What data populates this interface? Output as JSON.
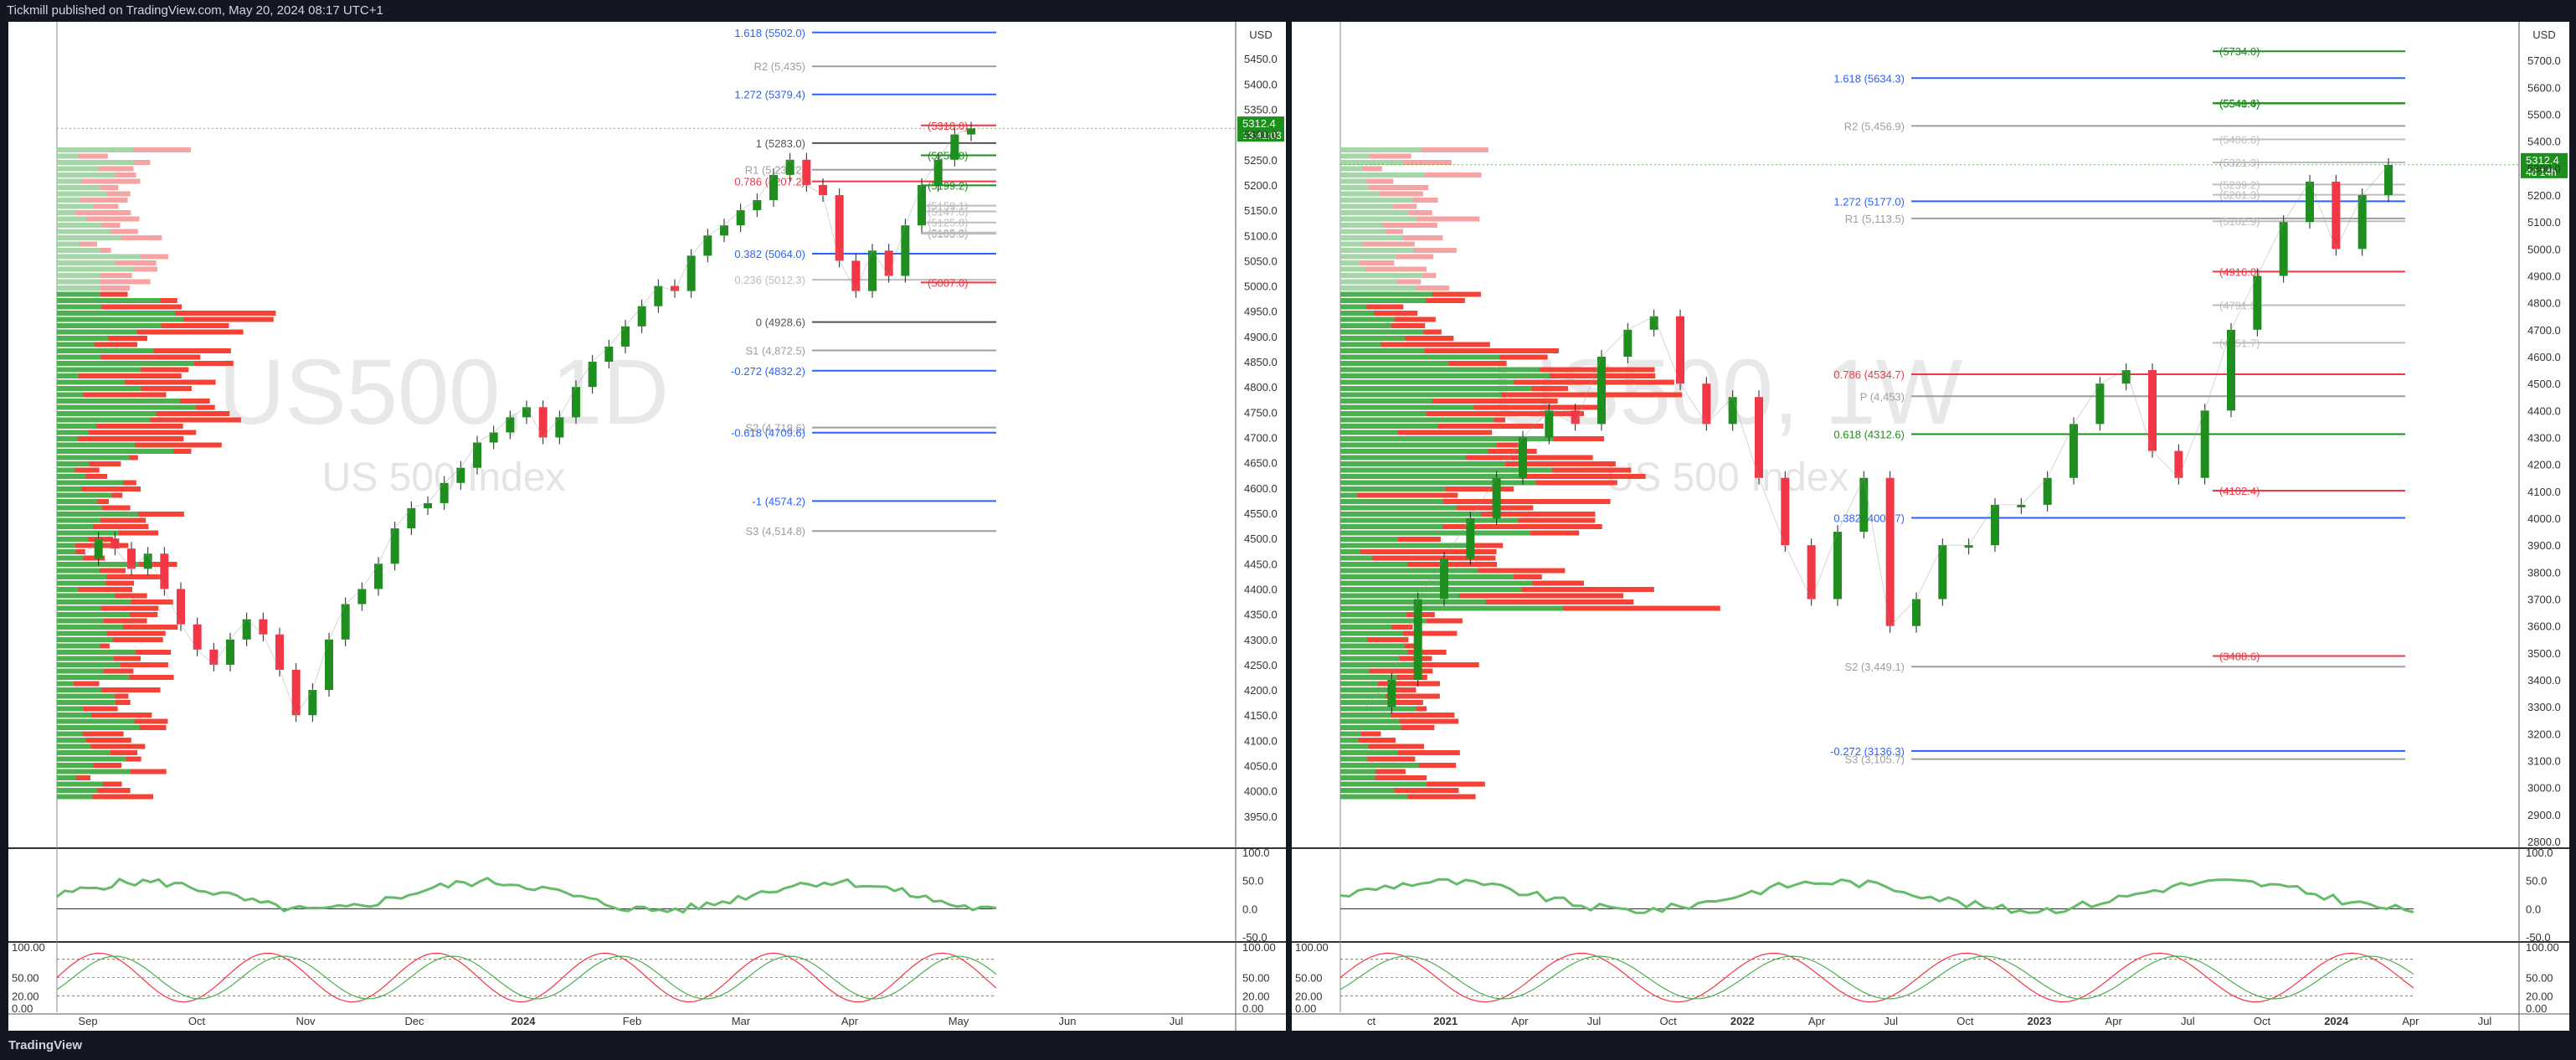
{
  "header": {
    "publish_line": "Tickmill published on TradingView.com, May 20, 2024 08:17 UTC+1"
  },
  "footer": {
    "brand": "TradingView"
  },
  "colors": {
    "up": "#1e8e1e",
    "down": "#f23645",
    "up_vol": "#4caf50",
    "down_vol": "#f44336",
    "fib_blue": "#2962ff",
    "pivot_grey": "#9e9e9e",
    "orange": "#ff9800",
    "magenta": "#e040fb"
  },
  "chart_data": [
    {
      "type": "line",
      "panel": "left",
      "symbol_watermark": "US500, 1D",
      "name_watermark": "US 500 Index",
      "currency": "USD",
      "last_price": "5312.4",
      "countdown": "13:41:03",
      "ylim": [
        3900,
        5500
      ],
      "y_ticks": [
        "5450.0",
        "5400.0",
        "5350.0",
        "5300.0",
        "5250.0",
        "5200.0",
        "5150.0",
        "5100.0",
        "5050.0",
        "5000.0",
        "4950.0",
        "4900.0",
        "4850.0",
        "4800.0",
        "4750.0",
        "4700.0",
        "4650.0",
        "4600.0",
        "4550.0",
        "4500.0",
        "4450.0",
        "4400.0",
        "4350.0",
        "4300.0",
        "4250.0",
        "4200.0",
        "4150.0",
        "4100.0",
        "4050.0",
        "4000.0",
        "3950.0"
      ],
      "x_ticks": [
        "Sep",
        "Oct",
        "Nov",
        "Dec",
        "2024",
        "Feb",
        "Mar",
        "Apr",
        "May",
        "Jun",
        "Jul"
      ],
      "x_tick_bold": [
        false,
        false,
        false,
        false,
        true,
        false,
        false,
        false,
        false,
        false,
        false
      ],
      "price_path": [
        [
          "Sep",
          4460
        ],
        [
          "Sep",
          4500
        ],
        [
          "Sep",
          4480
        ],
        [
          "Sep",
          4440
        ],
        [
          "Sep",
          4470
        ],
        [
          "Sep",
          4400
        ],
        [
          "Oct",
          4330
        ],
        [
          "Oct",
          4280
        ],
        [
          "Oct",
          4250
        ],
        [
          "Oct",
          4300
        ],
        [
          "Oct",
          4340
        ],
        [
          "Oct",
          4310
        ],
        [
          "Oct",
          4240
        ],
        [
          "Nov",
          4150
        ],
        [
          "Nov",
          4200
        ],
        [
          "Nov",
          4300
        ],
        [
          "Nov",
          4370
        ],
        [
          "Nov",
          4400
        ],
        [
          "Nov",
          4450
        ],
        [
          "Nov",
          4520
        ],
        [
          "Nov",
          4560
        ],
        [
          "Dec",
          4570
        ],
        [
          "Dec",
          4610
        ],
        [
          "Dec",
          4640
        ],
        [
          "Dec",
          4690
        ],
        [
          "Dec",
          4710
        ],
        [
          "Dec",
          4740
        ],
        [
          "Dec",
          4760
        ],
        [
          "2024",
          4700
        ],
        [
          "2024",
          4740
        ],
        [
          "2024",
          4800
        ],
        [
          "2024",
          4850
        ],
        [
          "2024",
          4880
        ],
        [
          "Feb",
          4920
        ],
        [
          "Feb",
          4960
        ],
        [
          "Feb",
          5000
        ],
        [
          "Feb",
          4990
        ],
        [
          "Feb",
          5060
        ],
        [
          "Mar",
          5100
        ],
        [
          "Mar",
          5120
        ],
        [
          "Mar",
          5150
        ],
        [
          "Mar",
          5170
        ],
        [
          "Mar",
          5220
        ],
        [
          "Apr",
          5250
        ],
        [
          "Apr",
          5200
        ],
        [
          "Apr",
          5180
        ],
        [
          "Apr",
          5050
        ],
        [
          "Apr",
          4990
        ],
        [
          "Apr",
          5070
        ],
        [
          "May",
          5020
        ],
        [
          "May",
          5120
        ],
        [
          "May",
          5200
        ],
        [
          "May",
          5250
        ],
        [
          "May",
          5300
        ],
        [
          "May",
          5312
        ]
      ],
      "levels": [
        {
          "label": "1.618 (5502.0)",
          "value": 5502.0,
          "color": "#2962ff"
        },
        {
          "label": "R2 (5,435)",
          "value": 5435,
          "color": "#9e9e9e"
        },
        {
          "label": "1.272 (5379.4)",
          "value": 5379.4,
          "color": "#2962ff"
        },
        {
          "label": "(5318.0)",
          "value": 5318.0,
          "color": "#f23645"
        },
        {
          "label": "1 (5283.0)",
          "value": 5283.0,
          "color": "#555555"
        },
        {
          "label": "(5258.8)",
          "value": 5258.8,
          "color": "#1e8e1e"
        },
        {
          "label": "R1 (5,230.2)",
          "value": 5230.2,
          "color": "#9e9e9e"
        },
        {
          "label": "0.786 (5207.2)",
          "value": 5207.2,
          "color": "#f23645"
        },
        {
          "label": "(5199.2)",
          "value": 5199.2,
          "color": "#1e8e1e"
        },
        {
          "label": "(5159.1)",
          "value": 5159.1,
          "color": "#bdbdbd"
        },
        {
          "label": "(5147.6)",
          "value": 5147.6,
          "color": "#bdbdbd"
        },
        {
          "label": "(5125.8)",
          "value": 5125.8,
          "color": "#bdbdbd"
        },
        {
          "label": "(5105.8)",
          "value": 5105.8,
          "color": "#bdbdbd"
        },
        {
          "label": "(5103.5)",
          "value": 5103.5,
          "color": "#bdbdbd"
        },
        {
          "label": "0.382 (5064.0)",
          "value": 5064.0,
          "color": "#2962ff"
        },
        {
          "label": "0.236 (5012.3)",
          "value": 5012.3,
          "color": "#bdbdbd"
        },
        {
          "label": "(5007.0)",
          "value": 5007.0,
          "color": "#f23645"
        },
        {
          "label": "0 (4928.6)",
          "value": 4928.6,
          "color": "#555555"
        },
        {
          "label": "S1 (4,872.5)",
          "value": 4872.5,
          "color": "#9e9e9e"
        },
        {
          "label": "-0.272 (4832.2)",
          "value": 4832.2,
          "color": "#2962ff"
        },
        {
          "label": "S2 (4,719.6)",
          "value": 4719.6,
          "color": "#9e9e9e"
        },
        {
          "label": "-0.618 (4709.6)",
          "value": 4709.6,
          "color": "#2962ff"
        },
        {
          "label": "-1 (4574.2)",
          "value": 4574.2,
          "color": "#2962ff"
        },
        {
          "label": "S3 (4,514.8)",
          "value": 4514.8,
          "color": "#9e9e9e"
        }
      ],
      "rsi": {
        "ylim": [
          -50,
          100
        ],
        "y_ticks": [
          "100.0",
          "50.0",
          "0.0",
          "-50.0"
        ]
      },
      "stoch": {
        "ylim": [
          0,
          100
        ],
        "y_ticks": [
          "100.00",
          "50.00",
          "20.00",
          "0.00"
        ],
        "y_ticks_left": [
          "100.00",
          "50.00",
          "20.00",
          "0.00"
        ]
      }
    },
    {
      "type": "line",
      "panel": "right",
      "symbol_watermark": "US500, 1W",
      "name_watermark": "US 500 Index",
      "currency": "USD",
      "last_price": "5312.4",
      "countdown": "4d 14h",
      "ylim": [
        2800,
        5800
      ],
      "y_ticks": [
        "5700.0",
        "5600.0",
        "5500.0",
        "5400.0",
        "5300.0",
        "5200.0",
        "5100.0",
        "5000.0",
        "4900.0",
        "4800.0",
        "4700.0",
        "4600.0",
        "4500.0",
        "4400.0",
        "4300.0",
        "4200.0",
        "4100.0",
        "4000.0",
        "3900.0",
        "3800.0",
        "3700.0",
        "3600.0",
        "3500.0",
        "3400.0",
        "3300.0",
        "3200.0",
        "3100.0",
        "3000.0",
        "2900.0",
        "2800.0"
      ],
      "x_ticks": [
        "ct",
        "2021",
        "Apr",
        "Jul",
        "Oct",
        "2022",
        "Apr",
        "Jul",
        "Oct",
        "2023",
        "Apr",
        "Jul",
        "Oct",
        "2024",
        "Apr",
        "Jul"
      ],
      "x_tick_bold": [
        false,
        true,
        false,
        false,
        false,
        true,
        false,
        false,
        false,
        true,
        false,
        false,
        false,
        true,
        false,
        false
      ],
      "price_path": [
        [
          "ct",
          3300
        ],
        [
          "ct",
          3400
        ],
        [
          "2021",
          3700
        ],
        [
          "2021",
          3850
        ],
        [
          "Apr",
          4000
        ],
        [
          "Apr",
          4150
        ],
        [
          "Jul",
          4300
        ],
        [
          "Jul",
          4400
        ],
        [
          "Oct",
          4350
        ],
        [
          "Oct",
          4600
        ],
        [
          "Oct",
          4700
        ],
        [
          "2022",
          4750
        ],
        [
          "2022",
          4500
        ],
        [
          "2022",
          4350
        ],
        [
          "Apr",
          4450
        ],
        [
          "Apr",
          4150
        ],
        [
          "Apr",
          3900
        ],
        [
          "Jul",
          3700
        ],
        [
          "Jul",
          3950
        ],
        [
          "Jul",
          4150
        ],
        [
          "Oct",
          3600
        ],
        [
          "Oct",
          3700
        ],
        [
          "Oct",
          3900
        ],
        [
          "2023",
          3900
        ],
        [
          "2023",
          4050
        ],
        [
          "Apr",
          4050
        ],
        [
          "Apr",
          4150
        ],
        [
          "Apr",
          4350
        ],
        [
          "Jul",
          4500
        ],
        [
          "Jul",
          4550
        ],
        [
          "Oct",
          4250
        ],
        [
          "Oct",
          4150
        ],
        [
          "Oct",
          4400
        ],
        [
          "2024",
          4700
        ],
        [
          "2024",
          4900
        ],
        [
          "2024",
          5100
        ],
        [
          "Apr",
          5250
        ],
        [
          "Apr",
          5000
        ],
        [
          "Apr",
          5200
        ],
        [
          "Jul",
          5312
        ]
      ],
      "levels": [
        {
          "label": "(5734.0)",
          "value": 5734.0,
          "color": "#1e8e1e"
        },
        {
          "label": "1.618 (5634.3)",
          "value": 5634.3,
          "color": "#2962ff"
        },
        {
          "label": "(5541.6)",
          "value": 5541.6,
          "color": "#1e8e1e"
        },
        {
          "label": "(5540.4)",
          "value": 5540.4,
          "color": "#1e8e1e"
        },
        {
          "label": "R2 (5,456.9)",
          "value": 5456.9,
          "color": "#9e9e9e"
        },
        {
          "label": "(5406.6)",
          "value": 5406.6,
          "color": "#bdbdbd"
        },
        {
          "label": "(5321.3)",
          "value": 5321.3,
          "color": "#bdbdbd"
        },
        {
          "label": "(5239.2)",
          "value": 5239.2,
          "color": "#bdbdbd"
        },
        {
          "label": "(5201.3)",
          "value": 5201.3,
          "color": "#bdbdbd"
        },
        {
          "label": "1.272 (5177.0)",
          "value": 5177.0,
          "color": "#2962ff"
        },
        {
          "label": "R1 (5,113.5)",
          "value": 5113.5,
          "color": "#9e9e9e"
        },
        {
          "label": "(5102.9)",
          "value": 5102.9,
          "color": "#bdbdbd"
        },
        {
          "label": "(4916.0)",
          "value": 4916.0,
          "color": "#f23645"
        },
        {
          "label": "(4791.3)",
          "value": 4791.3,
          "color": "#bdbdbd"
        },
        {
          "label": "(4651.7)",
          "value": 4651.7,
          "color": "#bdbdbd"
        },
        {
          "label": "0.786 (4534.7)",
          "value": 4534.7,
          "color": "#f23645"
        },
        {
          "label": "P (4,453)",
          "value": 4453,
          "color": "#9e9e9e"
        },
        {
          "label": "0.618 (4312.6)",
          "value": 4312.6,
          "color": "#1e8e1e"
        },
        {
          "label": "(4102.4)",
          "value": 4102.4,
          "color": "#f23645"
        },
        {
          "label": "0.382 (4001.7)",
          "value": 4001.7,
          "color": "#2962ff"
        },
        {
          "label": "(3488.6)",
          "value": 3488.6,
          "color": "#f23645"
        },
        {
          "label": "S2 (3,449.1)",
          "value": 3449.1,
          "color": "#9e9e9e"
        },
        {
          "label": "-0.272 (3136.3)",
          "value": 3136.3,
          "color": "#2962ff"
        },
        {
          "label": "S3 (3,105.7)",
          "value": 3105.7,
          "color": "#9e9e9e"
        }
      ],
      "rsi": {
        "ylim": [
          -50,
          100
        ],
        "y_ticks": [
          "100.0",
          "50.0",
          "0.0",
          "-50.0"
        ]
      },
      "stoch": {
        "ylim": [
          0,
          100
        ],
        "y_ticks": [
          "100.00",
          "50.00",
          "20.00",
          "0.00"
        ],
        "y_ticks_left": [
          "100.00",
          "50.00",
          "20.00",
          "0.00"
        ]
      }
    }
  ]
}
